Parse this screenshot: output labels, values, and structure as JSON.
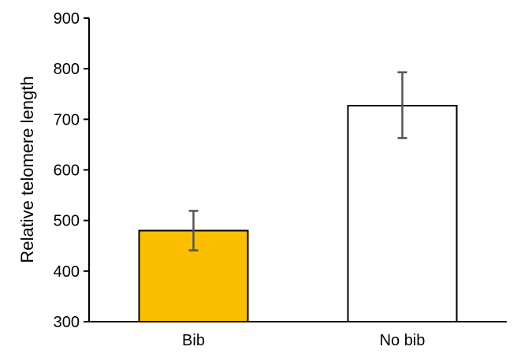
{
  "chart_data": {
    "type": "bar",
    "categories": [
      "Bib",
      "No bib"
    ],
    "values": [
      480,
      727
    ],
    "error_bars": [
      {
        "low": 441,
        "high": 519
      },
      {
        "low": 663,
        "high": 793
      }
    ],
    "ylabel": "Relative telomere length",
    "xlabel": "",
    "ylim": [
      300,
      900
    ],
    "yticks": [
      300,
      400,
      500,
      600,
      700,
      800,
      900
    ],
    "grid": false,
    "colors": {
      "bars": [
        "#FBBF00",
        "#FFFFFF"
      ],
      "bar_stroke": "#000000",
      "error_bar": "#555555",
      "axis": "#000000"
    }
  }
}
